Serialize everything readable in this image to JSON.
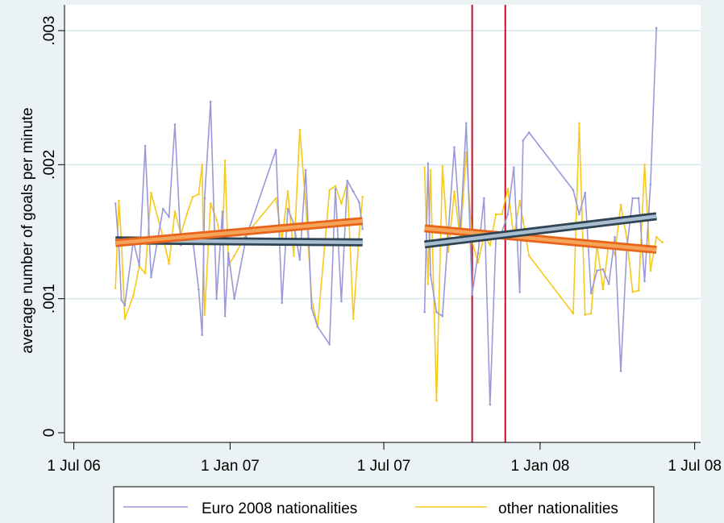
{
  "chart_data": {
    "type": "line",
    "ylabel": "average number of goals per minute",
    "xlabel": "",
    "ylim": [
      0,
      0.003
    ],
    "xlim": [
      "2006-06-20",
      "2008-07-08"
    ],
    "y_ticks": [
      {
        "value": 0,
        "label": "0"
      },
      {
        "value": 0.001,
        "label": ".001"
      },
      {
        "value": 0.002,
        "label": ".002"
      },
      {
        "value": 0.003,
        "label": ".003"
      }
    ],
    "x_ticks": [
      {
        "value": "2006-07-01",
        "label": "1 Jul 06"
      },
      {
        "value": "2007-01-01",
        "label": "1 Jan 07"
      },
      {
        "value": "2007-07-01",
        "label": "1 Jul 07"
      },
      {
        "value": "2008-01-01",
        "label": "1 Jan 08"
      },
      {
        "value": "2008-07-01",
        "label": "1 Jul 08"
      }
    ],
    "grid": "horizontal",
    "legend_position": "bottom",
    "vlines": [
      {
        "x": "2007-10-13",
        "color": "#c0102a"
      },
      {
        "x": "2007-11-21",
        "color": "#c0102a"
      }
    ],
    "colors": {
      "euro": "#9a98d8",
      "other": "#f7c91b",
      "trend_euro_fill": "#a9bdd0",
      "trend_euro_edge": "#2f4452",
      "trend_other_fill": "#f6a35a",
      "trend_other_edge": "#e8641a"
    },
    "series": [
      {
        "name": "Euro 2008 nationalities",
        "color": "#9a98d8",
        "points": [
          [
            "2006-08-19",
            0.00171
          ],
          [
            "2006-08-23",
            0.00139
          ],
          [
            "2006-08-26",
            0.00099
          ],
          [
            "2006-08-30",
            0.00095
          ],
          [
            "2006-09-09",
            0.00143
          ],
          [
            "2006-09-16",
            0.00125
          ],
          [
            "2006-09-23",
            0.00214
          ],
          [
            "2006-09-30",
            0.00116
          ],
          [
            "2006-10-14",
            0.00167
          ],
          [
            "2006-10-21",
            0.00161
          ],
          [
            "2006-10-28",
            0.0023
          ],
          [
            "2006-11-04",
            0.0014
          ],
          [
            "2006-11-11",
            0.00146
          ],
          [
            "2006-11-18",
            0.00144
          ],
          [
            "2006-11-25",
            0.00107
          ],
          [
            "2006-11-29",
            0.00073
          ],
          [
            "2006-12-02",
            0.00175
          ],
          [
            "2006-12-09",
            0.00247
          ],
          [
            "2006-12-16",
            0.001
          ],
          [
            "2006-12-23",
            0.00165
          ],
          [
            "2006-12-26",
            0.00087
          ],
          [
            "2006-12-30",
            0.00134
          ],
          [
            "2007-01-06",
            0.001
          ],
          [
            "2007-01-20",
            0.00146
          ],
          [
            "2007-02-24",
            0.00211
          ],
          [
            "2007-03-03",
            0.00097
          ],
          [
            "2007-03-10",
            0.00167
          ],
          [
            "2007-03-17",
            0.00156
          ],
          [
            "2007-03-24",
            0.00129
          ],
          [
            "2007-03-31",
            0.00196
          ],
          [
            "2007-04-07",
            0.00093
          ],
          [
            "2007-04-14",
            0.00079
          ],
          [
            "2007-04-28",
            0.00066
          ],
          [
            "2007-05-05",
            0.00182
          ],
          [
            "2007-05-12",
            0.00098
          ],
          [
            "2007-05-19",
            0.00188
          ],
          [
            "2007-05-26",
            0.0018
          ],
          [
            "2007-06-02",
            0.00172
          ],
          [
            "2007-06-06",
            0.00152
          ],
          null,
          [
            "2007-08-18",
            0.0009
          ],
          [
            "2007-08-22",
            0.00201
          ],
          [
            "2007-08-25",
            0.00118
          ],
          [
            "2007-09-01",
            0.0009
          ],
          [
            "2007-09-08",
            0.00087
          ],
          [
            "2007-09-15",
            0.0015
          ],
          [
            "2007-09-22",
            0.00213
          ],
          [
            "2007-09-29",
            0.0015
          ],
          [
            "2007-10-06",
            0.00231
          ],
          [
            "2007-10-13",
            0.00103
          ],
          [
            "2007-10-20",
            0.00134
          ],
          [
            "2007-10-27",
            0.00175
          ],
          [
            "2007-11-03",
            0.00021
          ],
          [
            "2007-11-10",
            0.00145
          ],
          [
            "2007-11-17",
            0.0015
          ],
          [
            "2007-11-24",
            0.00163
          ],
          [
            "2007-12-01",
            0.00198
          ],
          [
            "2007-12-08",
            0.00105
          ],
          [
            "2007-12-12",
            0.00218
          ],
          [
            "2007-12-19",
            0.00224
          ],
          [
            "2008-02-09",
            0.00181
          ],
          [
            "2008-02-16",
            0.00163
          ],
          [
            "2008-02-23",
            0.00179
          ],
          [
            "2008-03-01",
            0.00104
          ],
          [
            "2008-03-08",
            0.00121
          ],
          [
            "2008-03-15",
            0.00122
          ],
          [
            "2008-03-22",
            0.00111
          ],
          [
            "2008-03-29",
            0.00146
          ],
          [
            "2008-04-05",
            0.00046
          ],
          [
            "2008-04-12",
            0.00137
          ],
          [
            "2008-04-19",
            0.00175
          ],
          [
            "2008-04-26",
            0.00175
          ],
          [
            "2008-05-03",
            0.00113
          ],
          [
            "2008-05-10",
            0.00185
          ],
          [
            "2008-05-17",
            0.00302
          ]
        ]
      },
      {
        "name": "other nationalities",
        "color": "#f7c91b",
        "points": [
          [
            "2006-08-19",
            0.00108
          ],
          [
            "2006-08-23",
            0.00173
          ],
          [
            "2006-08-26",
            0.00143
          ],
          [
            "2006-08-30",
            0.00085
          ],
          [
            "2006-09-09",
            0.00102
          ],
          [
            "2006-09-16",
            0.00124
          ],
          [
            "2006-09-23",
            0.00119
          ],
          [
            "2006-09-30",
            0.00179
          ],
          [
            "2006-10-14",
            0.00146
          ],
          [
            "2006-10-21",
            0.00126
          ],
          [
            "2006-10-28",
            0.00165
          ],
          [
            "2006-11-04",
            0.00148
          ],
          [
            "2006-11-11",
            0.00163
          ],
          [
            "2006-11-18",
            0.00176
          ],
          [
            "2006-11-25",
            0.00178
          ],
          [
            "2006-11-29",
            0.002
          ],
          [
            "2006-12-02",
            0.00088
          ],
          [
            "2006-12-09",
            0.00171
          ],
          [
            "2006-12-16",
            0.00159
          ],
          [
            "2006-12-23",
            0.0014
          ],
          [
            "2006-12-26",
            0.00203
          ],
          [
            "2006-12-30",
            0.00125
          ],
          [
            "2007-01-06",
            0.00132
          ],
          [
            "2007-01-20",
            0.00148
          ],
          [
            "2007-02-24",
            0.00175
          ],
          [
            "2007-03-03",
            0.00144
          ],
          [
            "2007-03-10",
            0.0018
          ],
          [
            "2007-03-17",
            0.00132
          ],
          [
            "2007-03-24",
            0.00226
          ],
          [
            "2007-03-31",
            0.00171
          ],
          [
            "2007-04-07",
            0.001
          ],
          [
            "2007-04-14",
            0.00079
          ],
          [
            "2007-04-28",
            0.00181
          ],
          [
            "2007-05-05",
            0.00184
          ],
          [
            "2007-05-12",
            0.00171
          ],
          [
            "2007-05-19",
            0.00187
          ],
          [
            "2007-05-26",
            0.00085
          ],
          [
            "2007-06-02",
            0.00148
          ],
          [
            "2007-06-06",
            0.00176
          ],
          null,
          [
            "2007-08-18",
            0.00198
          ],
          [
            "2007-08-22",
            0.00111
          ],
          [
            "2007-08-25",
            0.00196
          ],
          [
            "2007-09-01",
            0.00024
          ],
          [
            "2007-09-08",
            0.00199
          ],
          [
            "2007-09-15",
            0.00135
          ],
          [
            "2007-09-22",
            0.0018
          ],
          [
            "2007-09-29",
            0.00144
          ],
          [
            "2007-10-06",
            0.00209
          ],
          [
            "2007-10-13",
            0.00143
          ],
          [
            "2007-10-20",
            0.00127
          ],
          [
            "2007-10-27",
            0.00147
          ],
          [
            "2007-11-03",
            0.0014
          ],
          [
            "2007-11-10",
            0.00163
          ],
          [
            "2007-11-17",
            0.00163
          ],
          [
            "2007-11-24",
            0.00182
          ],
          [
            "2007-12-01",
            0.00146
          ],
          [
            "2007-12-08",
            0.00173
          ],
          [
            "2007-12-12",
            0.00158
          ],
          [
            "2007-12-19",
            0.00132
          ],
          [
            "2008-02-09",
            0.00089
          ],
          [
            "2008-02-16",
            0.00231
          ],
          [
            "2008-02-23",
            0.00088
          ],
          [
            "2008-03-01",
            0.00089
          ],
          [
            "2008-03-08",
            0.0014
          ],
          [
            "2008-03-15",
            0.00107
          ],
          [
            "2008-03-22",
            0.00142
          ],
          [
            "2008-03-29",
            0.00133
          ],
          [
            "2008-04-05",
            0.0017
          ],
          [
            "2008-04-12",
            0.00145
          ],
          [
            "2008-04-19",
            0.00105
          ],
          [
            "2008-04-26",
            0.00106
          ],
          [
            "2008-05-03",
            0.002
          ],
          [
            "2008-05-10",
            0.00121
          ],
          [
            "2008-05-17",
            0.00146
          ],
          [
            "2008-05-24",
            0.00142
          ]
        ]
      }
    ],
    "trend_lines": [
      {
        "series": "Euro 2008 nationalities",
        "from": [
          "2006-08-19",
          0.001435
        ],
        "to": [
          "2007-06-06",
          0.00142
        ]
      },
      {
        "series": "other nationalities",
        "from": [
          "2006-08-19",
          0.001415
        ],
        "to": [
          "2007-06-06",
          0.00158
        ]
      },
      {
        "series": "Euro 2008 nationalities",
        "from": [
          "2007-08-18",
          0.001405
        ],
        "to": [
          "2008-05-17",
          0.001615
        ]
      },
      {
        "series": "other nationalities",
        "from": [
          "2007-08-18",
          0.001525
        ],
        "to": [
          "2008-05-17",
          0.001365
        ]
      }
    ]
  },
  "legend": {
    "items": [
      {
        "label": "Euro 2008 nationalities",
        "color": "#9a98d8"
      },
      {
        "label": "other nationalities",
        "color": "#f7c91b"
      }
    ]
  }
}
